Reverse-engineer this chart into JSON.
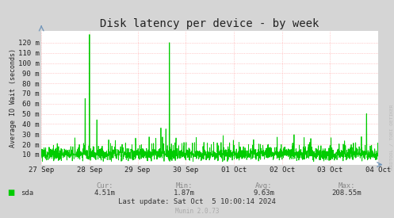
{
  "title": "Disk latency per device - by week",
  "ylabel": "Average IO Wait (seconds)",
  "bg_color": "#d5d5d5",
  "plot_bg_color": "#ffffff",
  "line_color": "#00cc00",
  "grid_color": "#ff9999",
  "x_tick_labels": [
    "27 Sep",
    "28 Sep",
    "29 Sep",
    "30 Sep",
    "01 Oct",
    "02 Oct",
    "03 Oct",
    "04 Oct"
  ],
  "y_tick_labels": [
    "10 m",
    "20 m",
    "30 m",
    "40 m",
    "50 m",
    "60 m",
    "70 m",
    "80 m",
    "90 m",
    "100 m",
    "110 m",
    "120 m"
  ],
  "y_tick_vals": [
    0.01,
    0.02,
    0.03,
    0.04,
    0.05,
    0.06,
    0.07,
    0.08,
    0.09,
    0.1,
    0.11,
    0.12
  ],
  "y_max": 0.132,
  "y_min": 0.0,
  "legend_label": "sda",
  "legend_color": "#00cc00",
  "stats_cur": "4.51m",
  "stats_min": "1.87m",
  "stats_avg": "9.63m",
  "stats_max": "208.55m",
  "last_update": "Last update: Sat Oct  5 10:00:14 2024",
  "munin_version": "Munin 2.0.73",
  "rrdtool_label": "RRDTOOL / TOBI OETIKER",
  "title_fontsize": 10,
  "axis_fontsize": 6.5,
  "stats_fontsize": 6.5,
  "num_points": 2016
}
